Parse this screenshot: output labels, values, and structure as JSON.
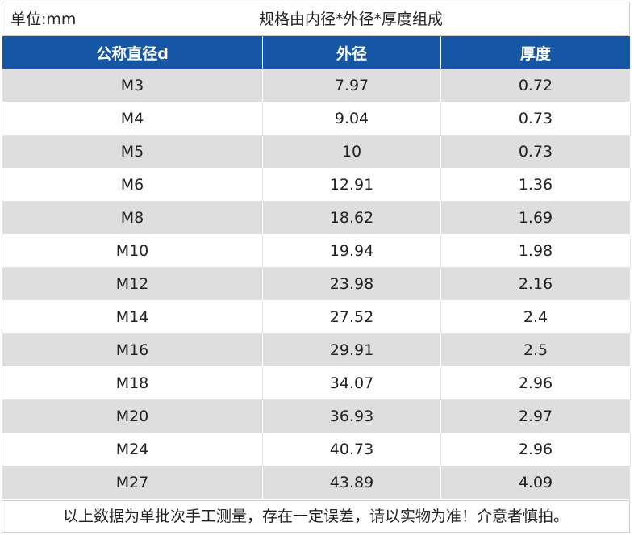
{
  "header": {
    "unit": "单位:mm",
    "spec_note": "规格由内径*外径*厚度组成"
  },
  "table": {
    "columns": [
      "公称直径d",
      "外径",
      "厚度"
    ],
    "rows": [
      [
        "M3",
        "7.97",
        "0.72"
      ],
      [
        "M4",
        "9.04",
        "0.73"
      ],
      [
        "M5",
        "10",
        "0.73"
      ],
      [
        "M6",
        "12.91",
        "1.36"
      ],
      [
        "M8",
        "18.62",
        "1.69"
      ],
      [
        "M10",
        "19.94",
        "1.98"
      ],
      [
        "M12",
        "23.98",
        "2.16"
      ],
      [
        "M14",
        "27.52",
        "2.4"
      ],
      [
        "M16",
        "29.91",
        "2.5"
      ],
      [
        "M18",
        "34.07",
        "2.96"
      ],
      [
        "M20",
        "36.93",
        "2.97"
      ],
      [
        "M24",
        "40.73",
        "2.96"
      ],
      [
        "M27",
        "43.89",
        "4.09"
      ]
    ]
  },
  "footer": {
    "note": "以上数据为单批次手工测量，存在一定误差，请以实物为准！介意者慎拍。"
  },
  "colors": {
    "header_bg": "#1556a5",
    "stripe_bg": "#dedede"
  }
}
